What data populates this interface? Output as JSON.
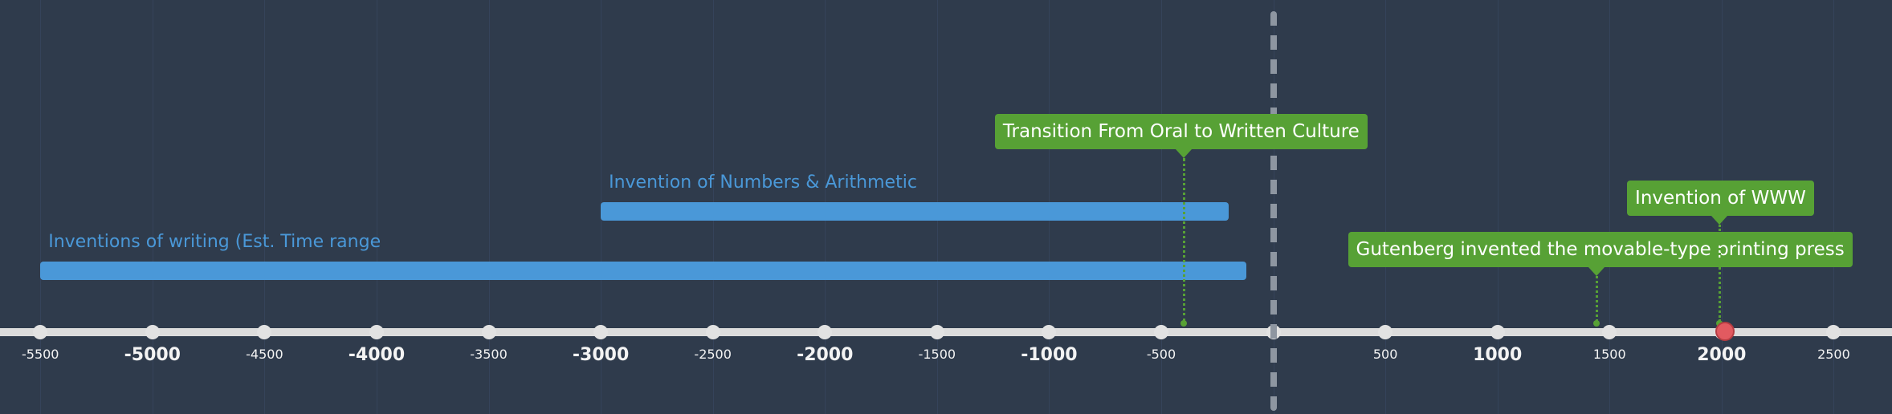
{
  "chart_data": {
    "type": "timeline",
    "x_range": [
      -5680,
      2760
    ],
    "ticks": [
      {
        "value": -5500,
        "label": "-5500",
        "major": false
      },
      {
        "value": -5000,
        "label": "-5000",
        "major": true
      },
      {
        "value": -4500,
        "label": "-4500",
        "major": false
      },
      {
        "value": -4000,
        "label": "-4000",
        "major": true
      },
      {
        "value": -3500,
        "label": "-3500",
        "major": false
      },
      {
        "value": -3000,
        "label": "-3000",
        "major": true
      },
      {
        "value": -2500,
        "label": "-2500",
        "major": false
      },
      {
        "value": -2000,
        "label": "-2000",
        "major": true
      },
      {
        "value": -1500,
        "label": "-1500",
        "major": false
      },
      {
        "value": -1000,
        "label": "-1000",
        "major": true
      },
      {
        "value": -500,
        "label": "-500",
        "major": false
      },
      {
        "value": 0,
        "label": "",
        "major": true
      },
      {
        "value": 500,
        "label": "500",
        "major": false
      },
      {
        "value": 1000,
        "label": "1000",
        "major": true
      },
      {
        "value": 1500,
        "label": "1500",
        "major": false
      },
      {
        "value": 2000,
        "label": "2000",
        "major": true
      },
      {
        "value": 2500,
        "label": "2500",
        "major": false
      }
    ],
    "divider_at": 0,
    "spans": [
      {
        "label": "Inventions of writing (Est. Time range",
        "start": -5500,
        "end": -120,
        "row": 1
      },
      {
        "label": "Invention of Numbers & Arithmetic",
        "start": -3000,
        "end": -200,
        "row": 2
      }
    ],
    "events": [
      {
        "label": "Transition From Oral to Written Culture",
        "date": -400,
        "row": 3
      },
      {
        "label": "Gutenberg invented the movable-type printing press",
        "date": 1440,
        "row": 1
      },
      {
        "label": "Invention of WWW",
        "date": 1990,
        "row": 2
      }
    ],
    "current_marker": 2015,
    "colors": {
      "background": "#2f3b4c",
      "axis": "#dcdcdc",
      "span": "#4a98d8",
      "event": "#57a135",
      "divider": "#8e96a1",
      "marker": "#e25a60"
    }
  }
}
